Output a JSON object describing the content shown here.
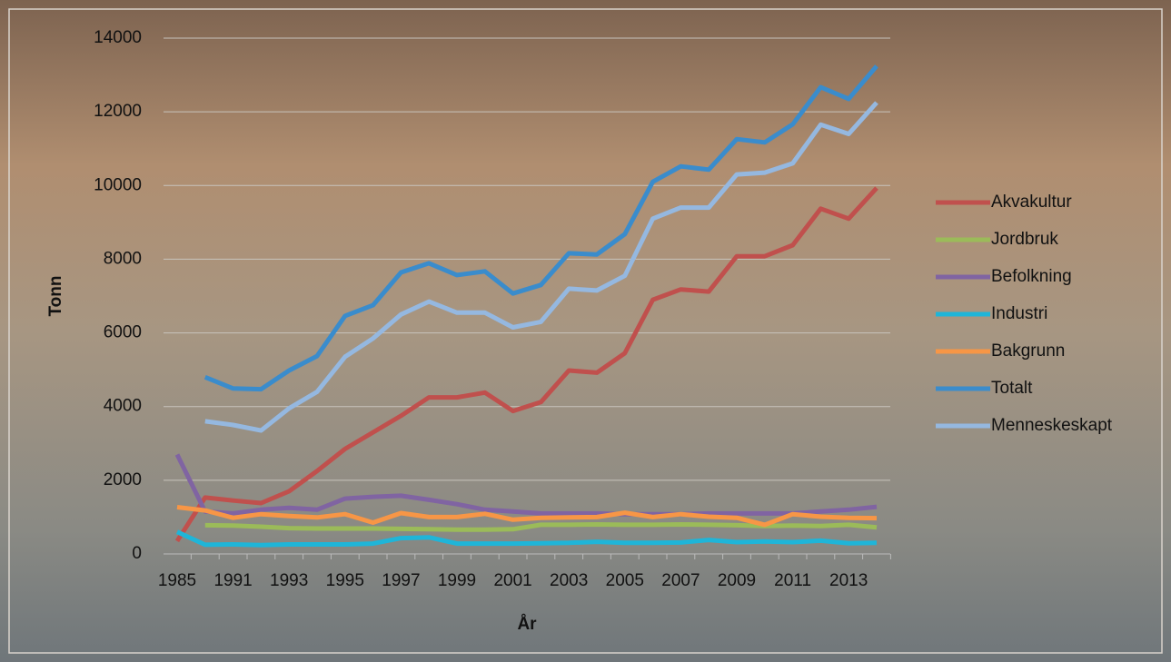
{
  "chart_data": {
    "type": "line",
    "x_label": "År",
    "y_label": "Tonn",
    "categories": [
      "1985",
      null,
      "1991",
      null,
      "1993",
      null,
      "1995",
      null,
      "1997",
      null,
      "1999",
      null,
      "2001",
      null,
      "2003",
      null,
      "2005",
      null,
      "2007",
      null,
      "2009",
      null,
      "2011",
      null,
      "2013",
      null
    ],
    "ylim": [
      0,
      14000
    ],
    "yticks": [
      0,
      2000,
      4000,
      6000,
      8000,
      10000,
      12000,
      14000
    ],
    "grid": true,
    "legend": "right",
    "series": [
      {
        "name": "Akvakultur",
        "color": "#c0504d",
        "values": [
          350,
          1530,
          1450,
          1380,
          1700,
          2250,
          2850,
          3300,
          3750,
          4250,
          4250,
          4380,
          3880,
          4120,
          4980,
          4920,
          5450,
          6900,
          7180,
          7120,
          8080,
          8080,
          8380,
          9370,
          9100,
          9930
        ]
      },
      {
        "name": "Jordbruk",
        "color": "#9bbb59",
        "values": [
          null,
          780,
          770,
          740,
          700,
          690,
          690,
          690,
          680,
          670,
          660,
          660,
          670,
          790,
          790,
          800,
          790,
          790,
          800,
          790,
          780,
          760,
          770,
          760,
          790,
          720
        ]
      },
      {
        "name": "Befolkning",
        "color": "#8064a2",
        "values": [
          2700,
          1150,
          1100,
          1200,
          1250,
          1200,
          1500,
          1550,
          1580,
          1470,
          1350,
          1200,
          1150,
          1100,
          1100,
          1100,
          1080,
          1080,
          1080,
          1100,
          1100,
          1100,
          1100,
          1150,
          1200,
          1280
        ]
      },
      {
        "name": "Industri",
        "color": "#1fb5d8",
        "values": [
          600,
          250,
          260,
          240,
          260,
          260,
          260,
          280,
          430,
          450,
          280,
          280,
          280,
          290,
          300,
          330,
          300,
          300,
          310,
          380,
          320,
          340,
          320,
          360,
          290,
          300
        ]
      },
      {
        "name": "Bakgrunn",
        "color": "#f79646",
        "values": [
          1270,
          1180,
          980,
          1080,
          1030,
          990,
          1080,
          850,
          1110,
          1000,
          1000,
          1090,
          930,
          980,
          990,
          1000,
          1120,
          1000,
          1080,
          1010,
          980,
          790,
          1080,
          1010,
          980,
          970
        ]
      },
      {
        "name": "Totalt",
        "color": "#3a8ccc",
        "values": [
          null,
          4800,
          4490,
          4470,
          4980,
          5370,
          6460,
          6750,
          7640,
          7890,
          7570,
          7670,
          7070,
          7300,
          8160,
          8130,
          8680,
          10100,
          10520,
          10430,
          11260,
          11170,
          11660,
          12670,
          12350,
          13240
        ]
      },
      {
        "name": "Menneskeskapt",
        "color": "#95b8e0",
        "values": [
          null,
          3600,
          3500,
          3350,
          3950,
          4400,
          5350,
          5850,
          6500,
          6850,
          6550,
          6550,
          6150,
          6300,
          7200,
          7150,
          7550,
          9100,
          9400,
          9400,
          10300,
          10350,
          10600,
          11650,
          11400,
          12250
        ]
      }
    ]
  }
}
